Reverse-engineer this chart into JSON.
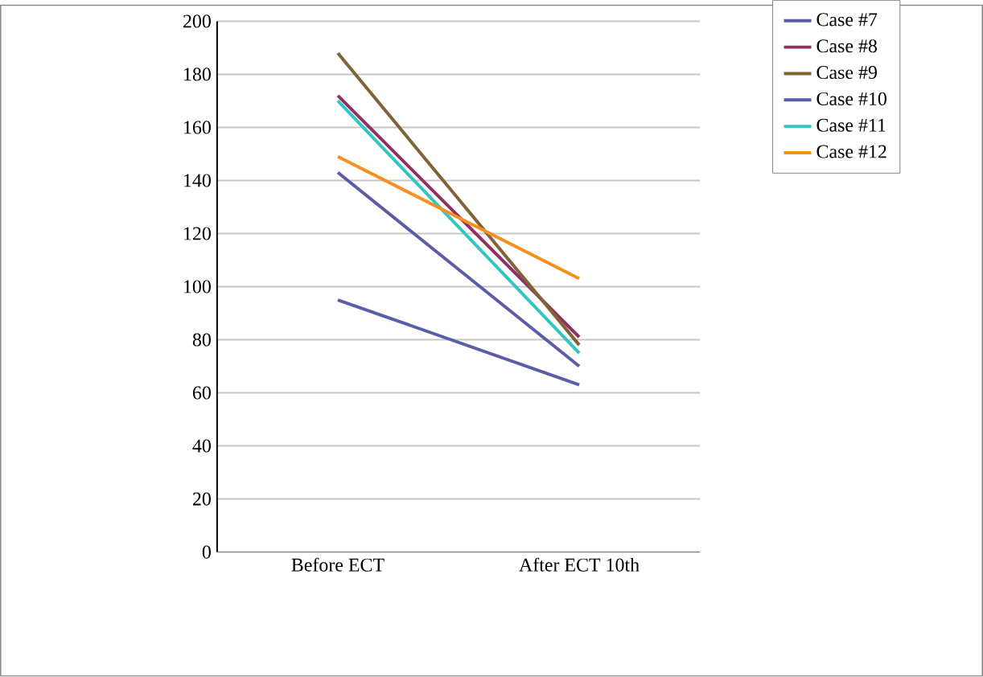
{
  "chart_data": {
    "type": "line",
    "categories": [
      "Before ECT",
      "After ECT 10th"
    ],
    "series": [
      {
        "name": "Case #7",
        "color": "#5b5ea6",
        "values": [
          143,
          70
        ]
      },
      {
        "name": "Case #8",
        "color": "#8e3062",
        "values": [
          172,
          81
        ]
      },
      {
        "name": "Case #9",
        "color": "#7f6236",
        "values": [
          188,
          78
        ]
      },
      {
        "name": "Case #10",
        "color": "#5b5ea6",
        "values": [
          95,
          63
        ]
      },
      {
        "name": "Case #11",
        "color": "#33c4c4",
        "values": [
          170,
          75
        ]
      },
      {
        "name": "Case #12",
        "color": "#f7901e",
        "values": [
          149,
          103
        ]
      }
    ],
    "ylim": [
      0,
      200
    ],
    "yticks": [
      0,
      20,
      40,
      60,
      80,
      100,
      120,
      140,
      160,
      180,
      200
    ],
    "grid": "y",
    "legend": "right",
    "marker": "none",
    "line_style": "solid"
  }
}
